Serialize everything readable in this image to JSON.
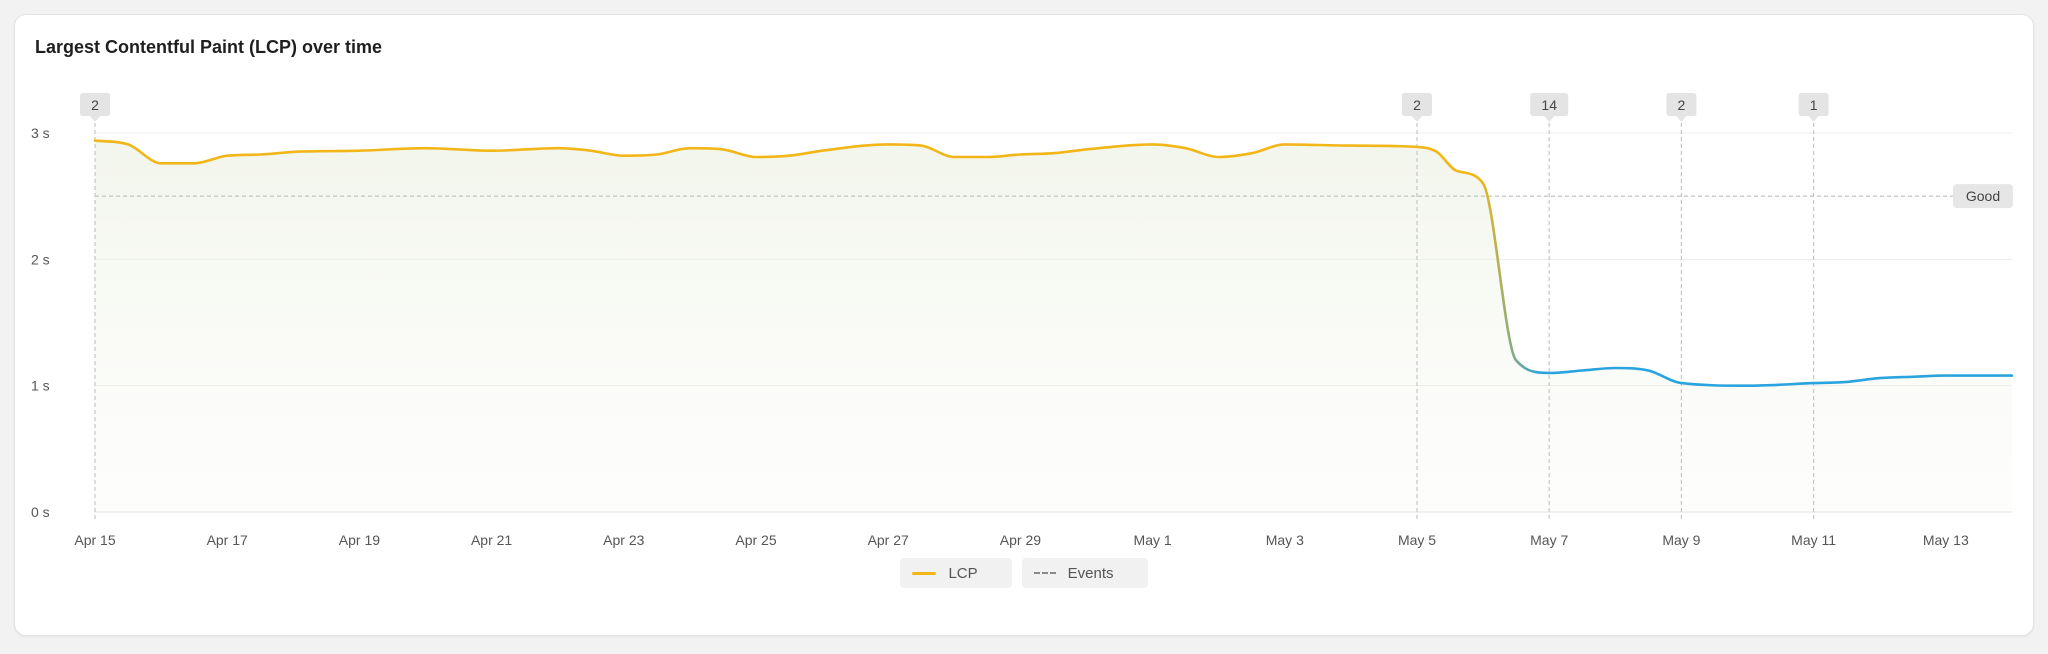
{
  "title": "Largest Contentful Paint (LCP) over time",
  "colors": {
    "lcp_poor": "#f2b619",
    "lcp_good": "#2aa4df",
    "events": "#8a8a8a",
    "threshold": "#c8c8c8"
  },
  "legend": {
    "lcp_label": "LCP",
    "events_label": "Events"
  },
  "chart_data": {
    "type": "line",
    "xlabel": "",
    "ylabel": "",
    "y_unit": "s",
    "ylim": [
      0,
      3
    ],
    "yticks": [
      {
        "value": 0,
        "label": "0 s"
      },
      {
        "value": 1,
        "label": "1 s"
      },
      {
        "value": 2,
        "label": "2 s"
      },
      {
        "value": 3,
        "label": "3 s"
      }
    ],
    "xlim": [
      "Apr 15",
      "May 14"
    ],
    "xticks": [
      "Apr 15",
      "Apr 17",
      "Apr 19",
      "Apr 21",
      "Apr 23",
      "Apr 25",
      "Apr 27",
      "Apr 29",
      "May 1",
      "May 3",
      "May 5",
      "May 7",
      "May 9",
      "May 11",
      "May 13"
    ],
    "grid": true,
    "legend_position": "bottom-center",
    "threshold": {
      "value": 2.5,
      "label": "Good"
    },
    "series": [
      {
        "name": "LCP",
        "x": [
          "Apr 15",
          "Apr 15.5",
          "Apr 16",
          "Apr 16.5",
          "Apr 17",
          "Apr 17.5",
          "Apr 18",
          "Apr 19",
          "Apr 20",
          "Apr 21",
          "Apr 22",
          "Apr 22.5",
          "Apr 23",
          "Apr 23.5",
          "Apr 24",
          "Apr 24.5",
          "Apr 25",
          "Apr 25.5",
          "Apr 26",
          "Apr 27",
          "Apr 27.5",
          "Apr 28",
          "Apr 28.5",
          "Apr 29",
          "Apr 29.5",
          "Apr 30",
          "May 1",
          "May 1.5",
          "May 2",
          "May 2.5",
          "May 3",
          "May 4",
          "May 5",
          "May 5.3",
          "May 5.6",
          "May 6",
          "May 6.5",
          "May 7",
          "May 7.5",
          "May 8",
          "May 8.5",
          "May 9",
          "May 10",
          "May 11",
          "May 11.5",
          "May 12",
          "May 12.5",
          "May 13",
          "May 14"
        ],
        "values": [
          2.94,
          2.91,
          2.76,
          2.76,
          2.82,
          2.83,
          2.85,
          2.86,
          2.88,
          2.86,
          2.88,
          2.86,
          2.82,
          2.83,
          2.88,
          2.87,
          2.81,
          2.82,
          2.86,
          2.91,
          2.9,
          2.81,
          2.81,
          2.83,
          2.84,
          2.87,
          2.91,
          2.88,
          2.81,
          2.84,
          2.91,
          2.9,
          2.89,
          2.85,
          2.7,
          2.6,
          1.2,
          1.1,
          1.12,
          1.14,
          1.12,
          1.02,
          1.0,
          1.02,
          1.03,
          1.06,
          1.07,
          1.08,
          1.08
        ]
      }
    ],
    "events": [
      {
        "x": "Apr 15",
        "count": "2"
      },
      {
        "x": "May 5",
        "count": "2"
      },
      {
        "x": "May 7",
        "count": "14"
      },
      {
        "x": "May 9",
        "count": "2"
      },
      {
        "x": "May 11",
        "count": "1"
      }
    ]
  }
}
